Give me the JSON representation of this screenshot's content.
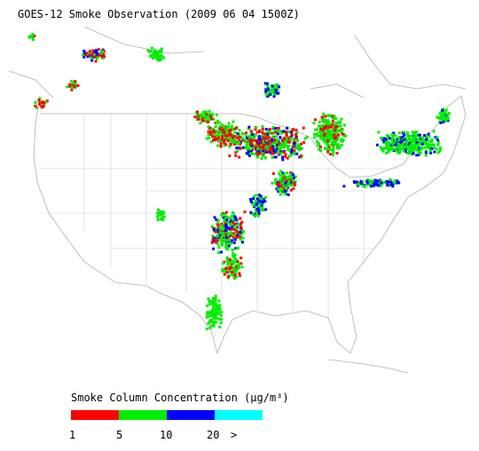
{
  "title": "GOES-12 Smoke Observation (2009 06 04  1500Z)",
  "legend": {
    "title": "Smoke Column Concentration (μg/m³)",
    "colors": [
      "#ff0000",
      "#00ee00",
      "#0000ff",
      "#00ffff"
    ],
    "ticks": [
      "1",
      "5",
      "10",
      "20",
      ">"
    ]
  }
}
